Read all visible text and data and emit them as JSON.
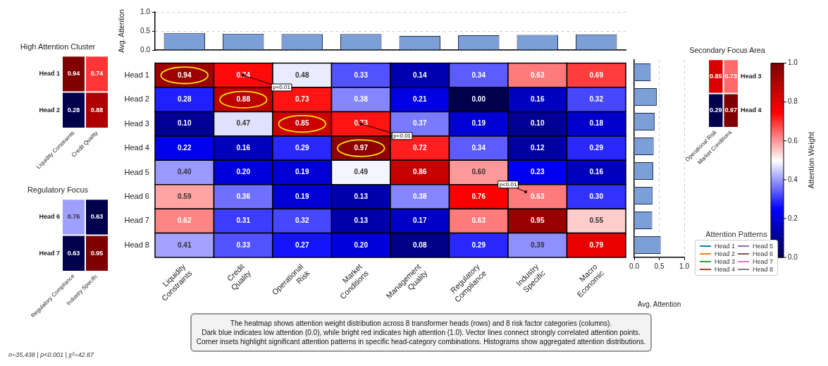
{
  "chart_data": [
    {
      "type": "bar",
      "ylabel": "Avg. Attention",
      "categories": [
        null,
        null,
        null,
        null,
        null,
        null,
        null,
        null
      ],
      "values": [
        0.45,
        0.43,
        0.42,
        0.42,
        0.37,
        0.39,
        0.4,
        0.41
      ],
      "color": "#7b9fd6",
      "ylim": [
        0,
        1
      ],
      "yticks": [
        {
          "value": 0,
          "label": "0.0"
        },
        {
          "value": 0.5,
          "label": "0.5"
        },
        {
          "value": 1,
          "label": "1.0"
        }
      ],
      "grid": "y",
      "tick_labels": "y"
    },
    {
      "type": "heatmap",
      "categories": [
        "Liquidity\nConstraints",
        "Credit\nQuality",
        "Operational\nRisk",
        "Market\nConditions",
        "Management\nQuality",
        "Regulatory\nCompliance",
        "Industry\nSpecific",
        "Macro\nEconomic"
      ],
      "y_categories": [
        "Head 1",
        "Head 2",
        "Head 3",
        "Head 4",
        "Head 5",
        "Head 6",
        "Head 7",
        "Head 8"
      ],
      "cells": [
        [
          0.94,
          0.74,
          0.48,
          0.33,
          0.14,
          0.34,
          0.63,
          0.69
        ],
        [
          0.28,
          0.88,
          0.73,
          0.38,
          0.21,
          0.0,
          0.16,
          0.32
        ],
        [
          0.1,
          0.47,
          0.85,
          0.73,
          0.37,
          0.19,
          0.1,
          0.18
        ],
        [
          0.22,
          0.16,
          0.29,
          0.97,
          0.72,
          0.34,
          0.12,
          0.29
        ],
        [
          0.4,
          0.2,
          0.19,
          0.49,
          0.86,
          0.6,
          0.23,
          0.16
        ],
        [
          0.59,
          0.36,
          0.19,
          0.13,
          0.38,
          0.76,
          0.63,
          0.3
        ],
        [
          0.62,
          0.31,
          0.32,
          0.13,
          0.17,
          0.63,
          0.95,
          0.55
        ],
        [
          0.41,
          0.33,
          0.27,
          0.2,
          0.08,
          0.29,
          0.39,
          0.79
        ]
      ],
      "cell_labels": [
        [
          "0.94",
          "0.74",
          "0.48",
          "0.33",
          "0.14",
          "0.34",
          "0.63",
          "0.69"
        ],
        [
          "0.28",
          "0.88",
          "0.73",
          "0.38",
          "0.21",
          "0.00",
          "0.16",
          "0.32"
        ],
        [
          "0.10",
          "0.47",
          "0.85",
          "0.73",
          "0.37",
          "0.19",
          "0.10",
          "0.18"
        ],
        [
          "0.22",
          "0.16",
          "0.29",
          "0.97",
          "0.72",
          "0.34",
          "0.12",
          "0.29"
        ],
        [
          "0.40",
          "0.20",
          "0.19",
          "0.49",
          "0.86",
          "0.60",
          "0.23",
          "0.16"
        ],
        [
          "0.59",
          "0.36",
          "0.19",
          "0.13",
          "0.38",
          "0.76",
          "0.63",
          "0.30"
        ],
        [
          "0.62",
          "0.31",
          "0.32",
          "0.13",
          "0.17",
          "0.63",
          "0.95",
          "0.55"
        ],
        [
          "0.41",
          "0.33",
          "0.27",
          "0.20",
          "0.08",
          "0.29",
          "0.39",
          "0.79"
        ]
      ],
      "data_labels": true,
      "clim": [
        0,
        1
      ],
      "cticks": [
        {
          "value": 0,
          "label": "0.0"
        },
        {
          "value": 0.2,
          "label": "0.2"
        },
        {
          "value": 0.4,
          "label": "0.4"
        },
        {
          "value": 0.6,
          "label": "0.6"
        },
        {
          "value": 0.8,
          "label": "0.8"
        },
        {
          "value": 1,
          "label": "1.0"
        }
      ],
      "clabel": "Attention Weight",
      "annotations": [
        "p<0.01",
        "p<0.01",
        "p<0.01",
        "The heatmap shows attention weight distribution across 8 transformer heads (rows) and 8 risk factor categories (columns).\nDark blue indicates low attention (0.0), while bright red indicates high attention (1.0). Vector lines connect strongly correlated attention points.\nCorner insets highlight significant attention patterns in specific head-category combinations. Histograms show aggregated attention distributions.",
        "n=35,438 | p<0.001 | χ²=42.87"
      ]
    },
    {
      "type": "bar",
      "orientation": "horizontal",
      "xlabel": "Avg. Attention",
      "categories": [
        null,
        null,
        null,
        null,
        null,
        null,
        null,
        null
      ],
      "values": [
        0.33,
        0.45,
        0.41,
        0.39,
        0.38,
        0.37,
        0.36,
        0.53
      ],
      "color": "#7b9fd6",
      "xlim": [
        0,
        1
      ],
      "xticks": [
        {
          "value": 0,
          "label": "0.0"
        },
        {
          "value": 0.5,
          "label": "0.5"
        },
        {
          "value": 1,
          "label": "1.0"
        }
      ],
      "grid": "x",
      "tick_labels": "x"
    },
    {
      "type": "heatmap",
      "title": "High Attention Cluster",
      "categories": [
        "Liquidity Constraints",
        "Credit Quality"
      ],
      "y_categories": [
        "Head 1",
        "Head 2"
      ],
      "cells": [
        [
          0.94,
          0.74
        ],
        [
          0.28,
          0.88
        ]
      ],
      "data_labels": true
    },
    {
      "type": "heatmap",
      "title": "Regulatory Focus",
      "categories": [
        "Regulatory Compliance",
        "Industry Specific"
      ],
      "y_categories": [
        "Head 6",
        "Head 7"
      ],
      "cells": [
        [
          0.76,
          0.63
        ],
        [
          0.63,
          0.95
        ]
      ],
      "data_labels": true
    },
    {
      "type": "heatmap",
      "title": "Secondary Focus Area",
      "categories": [
        "Operational Risk",
        "Market Conditions"
      ],
      "y_categories": [
        "Head 3",
        "Head 4"
      ],
      "cells": [
        [
          0.85,
          0.73
        ],
        [
          0.29,
          0.97
        ]
      ],
      "data_labels": true
    },
    {
      "type": "other",
      "legend_title": "Attention Patterns",
      "series": [
        {
          "name": "Head 1",
          "color": "#1f77b4"
        },
        {
          "name": "Head 2",
          "color": "#ff7f0e"
        },
        {
          "name": "Head 3",
          "color": "#2ca02c"
        },
        {
          "name": "Head 4",
          "color": "#d62728"
        },
        {
          "name": "Head 5",
          "color": "#9467bd"
        },
        {
          "name": "Head 6",
          "color": "#8c564b"
        },
        {
          "name": "Head 7",
          "color": "#e377c2"
        },
        {
          "name": "Head 8",
          "color": "#7f7f7f"
        }
      ]
    }
  ]
}
